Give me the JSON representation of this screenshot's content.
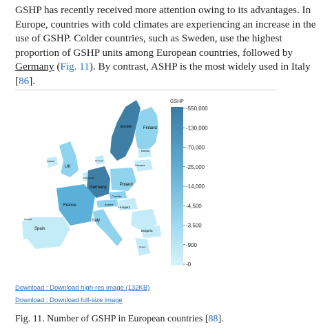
{
  "article": {
    "p_seg1": "GSHP has recently received more attention owing to its advantages. In Europe, countries with cold climates are experiencing an increase in the use of GSHP. Colder countries, such as Sweden, use the highest proportion of GSHP units among European countries, followed by ",
    "p_link_germany": "Germany",
    "p_seg2": " (",
    "p_link_fig": "Fig. 11",
    "p_seg3": "). By contrast, ASHP is the most widely used in Italy [",
    "p_link_ref": "86",
    "p_seg4": "]."
  },
  "figure": {
    "legend_title": "GSHP",
    "legend_ticks": [
      "550,000",
      "130,000",
      "70,000",
      "25,000",
      "14,000",
      "4,500",
      "3,500",
      "900",
      "0"
    ],
    "countries": {
      "sweden": "Sweden",
      "finland": "Finland",
      "estonia": "Estonia",
      "ireland": "Ireland",
      "uk": "UK",
      "denmark": "Denmark",
      "lithuania": "Lithuania",
      "netherlands": "Netherlands",
      "germany": "Germany",
      "poland": "Poland",
      "czechia": "Czechia",
      "france": "France",
      "austria": "Austria",
      "hungary": "Hungary",
      "portugal": "Portugal",
      "italy": "Italy",
      "spain": "Spain",
      "bulgaria": "Bulgaria",
      "greece": "Greece"
    },
    "colors": {
      "dark": "#3f7fa6",
      "mid": "#5ab0d9",
      "light": "#8fd3ee",
      "pale": "#c4ecf8",
      "legend_top": "#3a7aa3",
      "legend_bottom": "#d8f4fb"
    }
  },
  "downloads": {
    "high_res": "Download : Download high-res image (132KB)",
    "full_size": "Download : Download full-size image"
  },
  "caption": {
    "text": "Fig. 11. Number of GSHP in European countries [",
    "ref": "88",
    "end": "]."
  }
}
